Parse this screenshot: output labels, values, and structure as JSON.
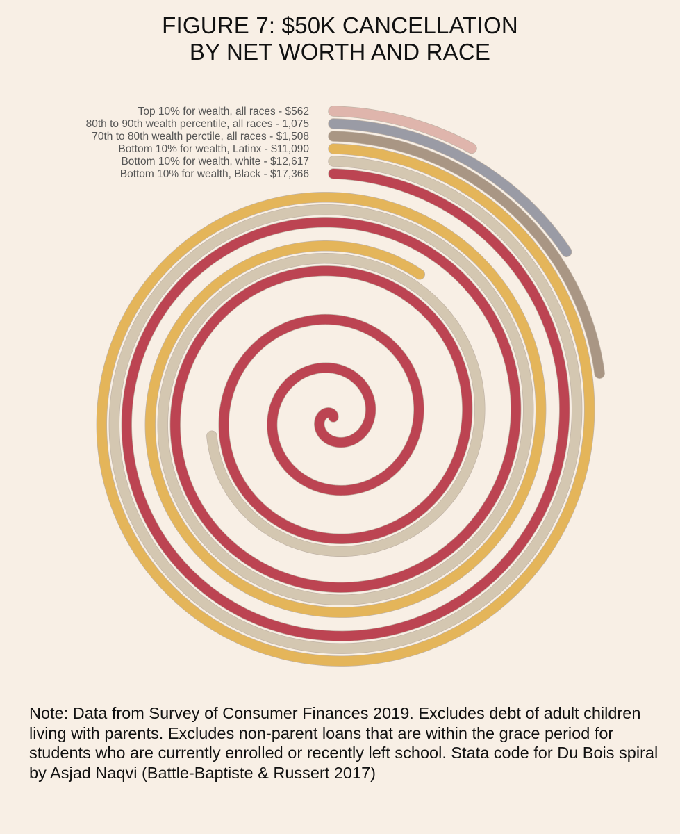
{
  "title": {
    "line1": "FIGURE 7: $50K CANCELLATION",
    "line2": "BY NET WORTH AND RACE"
  },
  "chart_data": {
    "type": "spiral",
    "title": "FIGURE 7: $50K CANCELLATION BY NET WORTH AND RACE",
    "xlabel": "",
    "ylabel": "",
    "grid": false,
    "legend": "labels at start of each spiral, top-left",
    "series": [
      {
        "label": "Top 10% for wealth, all races - $562",
        "value": 562,
        "color": "#dfb5ac"
      },
      {
        "label": "80th to 90th wealth percentile, all races - 1,075",
        "value": 1075,
        "color": "#9a9ba5"
      },
      {
        "label": "70th to 80th wealth perctile, all races - $1,508",
        "value": 1508,
        "color": "#a99684"
      },
      {
        "label": "Bottom 10% for wealth, Latinx - $11,090",
        "value": 11090,
        "color": "#e4b55a"
      },
      {
        "label": "Bottom 10% for wealth, white - $12,617",
        "value": 12617,
        "color": "#d4c7b1"
      },
      {
        "label": "Bottom 10% for wealth, Black - $17,366",
        "value": 17366,
        "color": "#bc4452"
      }
    ]
  },
  "note": "Note: Data from Survey of Consumer Finances 2019. Excludes debt of adult children living with parents. Excludes non-parent loans that are within the grace period for students who are currently enrolled or recently left school. Stata code for Du Bois spiral by Asjad Naqvi (Battle-Baptiste & Russert 2017)"
}
